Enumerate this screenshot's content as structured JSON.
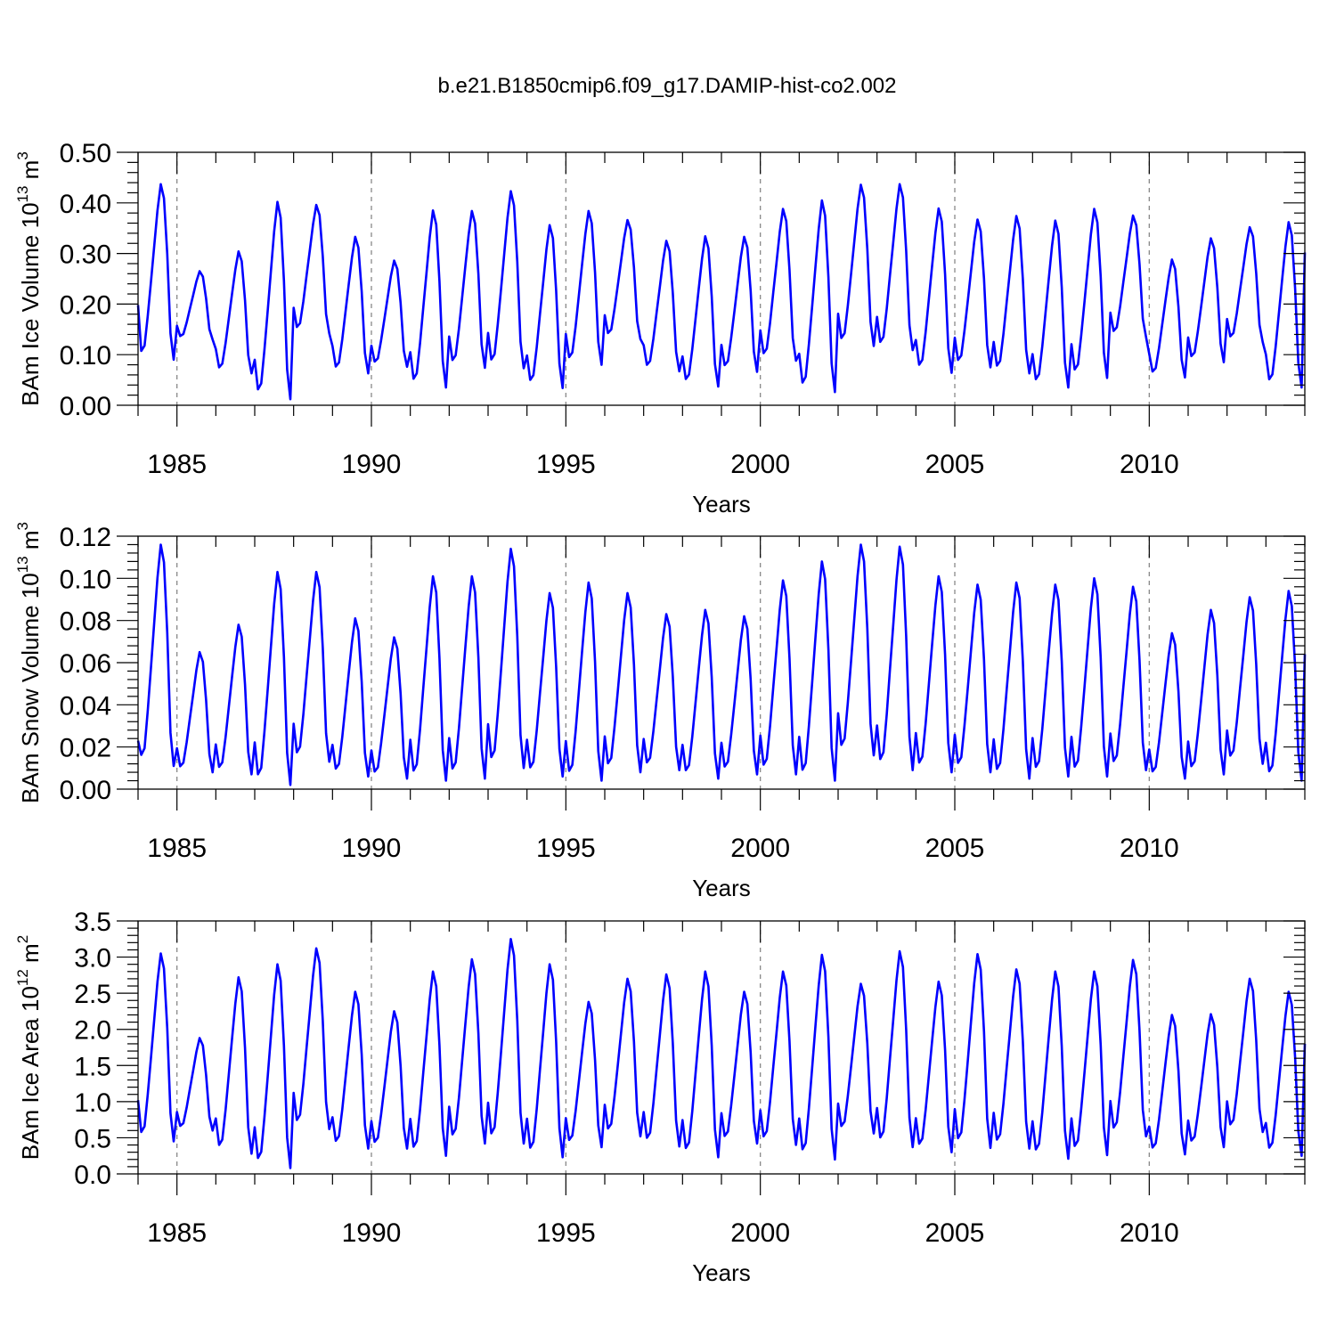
{
  "title": "b.e21.B1850cmip6.f09_g17.DAMIP-hist-co2.002",
  "colors": {
    "series": "#0000ff",
    "reference_line": "#888888"
  },
  "chart_data": [
    {
      "type": "line",
      "ylabel": "BAm Ice Volume 10",
      "ylabel_exp": "13",
      "ylabel_unit": " m",
      "ylabel_unit_exp": "3",
      "xlabel": "Years",
      "xlim": [
        1984.0,
        2014.0
      ],
      "ylim": [
        0.0,
        0.5
      ],
      "yticks": [
        "0.00",
        "0.10",
        "0.20",
        "0.30",
        "0.40",
        "0.50"
      ],
      "xticks": [
        "1985",
        "1990",
        "1995",
        "2000",
        "2005",
        "2010"
      ],
      "reference_lines_x": [
        1985,
        1990,
        1995,
        2000,
        2005,
        2010
      ],
      "grid": false,
      "annual": [
        {
          "year": 1984,
          "max": 0.437,
          "min": 0.09
        },
        {
          "year": 1985,
          "max": 0.265,
          "min": 0.13
        },
        {
          "year": 1986,
          "max": 0.304,
          "min": 0.063
        },
        {
          "year": 1987,
          "max": 0.402,
          "min": 0.012
        },
        {
          "year": 1988,
          "max": 0.396,
          "min": 0.142
        },
        {
          "year": 1989,
          "max": 0.333,
          "min": 0.063
        },
        {
          "year": 1990,
          "max": 0.286,
          "min": 0.076
        },
        {
          "year": 1991,
          "max": 0.385,
          "min": 0.035
        },
        {
          "year": 1992,
          "max": 0.384,
          "min": 0.074
        },
        {
          "year": 1993,
          "max": 0.423,
          "min": 0.073
        },
        {
          "year": 1994,
          "max": 0.356,
          "min": 0.034
        },
        {
          "year": 1995,
          "max": 0.384,
          "min": 0.08
        },
        {
          "year": 1996,
          "max": 0.366,
          "min": 0.131
        },
        {
          "year": 1997,
          "max": 0.325,
          "min": 0.067
        },
        {
          "year": 1998,
          "max": 0.334,
          "min": 0.037
        },
        {
          "year": 1999,
          "max": 0.333,
          "min": 0.066
        },
        {
          "year": 2000,
          "max": 0.388,
          "min": 0.088
        },
        {
          "year": 2001,
          "max": 0.405,
          "min": 0.026
        },
        {
          "year": 2002,
          "max": 0.436,
          "min": 0.117
        },
        {
          "year": 2003,
          "max": 0.437,
          "min": 0.109
        },
        {
          "year": 2004,
          "max": 0.389,
          "min": 0.064
        },
        {
          "year": 2005,
          "max": 0.367,
          "min": 0.075
        },
        {
          "year": 2006,
          "max": 0.374,
          "min": 0.063
        },
        {
          "year": 2007,
          "max": 0.365,
          "min": 0.035
        },
        {
          "year": 2008,
          "max": 0.388,
          "min": 0.054
        },
        {
          "year": 2009,
          "max": 0.375,
          "min": 0.135
        },
        {
          "year": 2010,
          "max": 0.288,
          "min": 0.055
        },
        {
          "year": 2011,
          "max": 0.33,
          "min": 0.085
        },
        {
          "year": 2012,
          "max": 0.352,
          "min": 0.125
        },
        {
          "year": 2013,
          "max": 0.362,
          "min": 0.035
        }
      ],
      "start_value": 0.198,
      "end_value": 0.302
    },
    {
      "type": "line",
      "ylabel": "BAm Snow Volume 10",
      "ylabel_exp": "13",
      "ylabel_unit": " m",
      "ylabel_unit_exp": "3",
      "xlabel": "Years",
      "xlim": [
        1984.0,
        2014.0
      ],
      "ylim": [
        0.0,
        0.12
      ],
      "yticks": [
        "0.00",
        "0.02",
        "0.04",
        "0.06",
        "0.08",
        "0.10",
        "0.12"
      ],
      "xticks": [
        "1985",
        "1990",
        "1995",
        "2000",
        "2005",
        "2010"
      ],
      "reference_lines_x": [
        1985,
        1990,
        1995,
        2000,
        2005,
        2010
      ],
      "grid": false,
      "annual": [
        {
          "year": 1984,
          "max": 0.116,
          "min": 0.011
        },
        {
          "year": 1985,
          "max": 0.065,
          "min": 0.008
        },
        {
          "year": 1986,
          "max": 0.078,
          "min": 0.007
        },
        {
          "year": 1987,
          "max": 0.103,
          "min": 0.002
        },
        {
          "year": 1988,
          "max": 0.103,
          "min": 0.013
        },
        {
          "year": 1989,
          "max": 0.081,
          "min": 0.006
        },
        {
          "year": 1990,
          "max": 0.072,
          "min": 0.005
        },
        {
          "year": 1991,
          "max": 0.101,
          "min": 0.004
        },
        {
          "year": 1992,
          "max": 0.101,
          "min": 0.005
        },
        {
          "year": 1993,
          "max": 0.114,
          "min": 0.01
        },
        {
          "year": 1994,
          "max": 0.093,
          "min": 0.006
        },
        {
          "year": 1995,
          "max": 0.098,
          "min": 0.004
        },
        {
          "year": 1996,
          "max": 0.093,
          "min": 0.008
        },
        {
          "year": 1997,
          "max": 0.083,
          "min": 0.009
        },
        {
          "year": 1998,
          "max": 0.085,
          "min": 0.005
        },
        {
          "year": 1999,
          "max": 0.082,
          "min": 0.007
        },
        {
          "year": 2000,
          "max": 0.099,
          "min": 0.007
        },
        {
          "year": 2001,
          "max": 0.108,
          "min": 0.004
        },
        {
          "year": 2002,
          "max": 0.116,
          "min": 0.016
        },
        {
          "year": 2003,
          "max": 0.115,
          "min": 0.009
        },
        {
          "year": 2004,
          "max": 0.101,
          "min": 0.008
        },
        {
          "year": 2005,
          "max": 0.097,
          "min": 0.008
        },
        {
          "year": 2006,
          "max": 0.098,
          "min": 0.005
        },
        {
          "year": 2007,
          "max": 0.097,
          "min": 0.006
        },
        {
          "year": 2008,
          "max": 0.1,
          "min": 0.006
        },
        {
          "year": 2009,
          "max": 0.096,
          "min": 0.009
        },
        {
          "year": 2010,
          "max": 0.074,
          "min": 0.005
        },
        {
          "year": 2011,
          "max": 0.085,
          "min": 0.007
        },
        {
          "year": 2012,
          "max": 0.091,
          "min": 0.012
        },
        {
          "year": 2013,
          "max": 0.094,
          "min": 0.004
        }
      ],
      "start_value": 0.023,
      "end_value": 0.064
    },
    {
      "type": "line",
      "ylabel": "BAm Ice Area 10",
      "ylabel_exp": "12",
      "ylabel_unit": " m",
      "ylabel_unit_exp": "2",
      "xlabel": "Years",
      "xlim": [
        1984.0,
        2014.0
      ],
      "ylim": [
        0.0,
        3.5
      ],
      "yticks": [
        "0.0",
        "0.5",
        "1.0",
        "1.5",
        "2.0",
        "2.5",
        "3.0",
        "3.5"
      ],
      "xticks": [
        "1985",
        "1990",
        "1995",
        "2000",
        "2005",
        "2010"
      ],
      "reference_lines_x": [
        1985,
        1990,
        1995,
        2000,
        2005,
        2010
      ],
      "grid": false,
      "annual": [
        {
          "year": 1984,
          "max": 3.05,
          "min": 0.45
        },
        {
          "year": 1985,
          "max": 1.88,
          "min": 0.6
        },
        {
          "year": 1986,
          "max": 2.72,
          "min": 0.28
        },
        {
          "year": 1987,
          "max": 2.9,
          "min": 0.08
        },
        {
          "year": 1988,
          "max": 3.12,
          "min": 0.62
        },
        {
          "year": 1989,
          "max": 2.52,
          "min": 0.35
        },
        {
          "year": 1990,
          "max": 2.25,
          "min": 0.35
        },
        {
          "year": 1991,
          "max": 2.8,
          "min": 0.25
        },
        {
          "year": 1992,
          "max": 2.97,
          "min": 0.42
        },
        {
          "year": 1993,
          "max": 3.25,
          "min": 0.42
        },
        {
          "year": 1994,
          "max": 2.9,
          "min": 0.23
        },
        {
          "year": 1995,
          "max": 2.38,
          "min": 0.37
        },
        {
          "year": 1996,
          "max": 2.7,
          "min": 0.52
        },
        {
          "year": 1997,
          "max": 2.76,
          "min": 0.38
        },
        {
          "year": 1998,
          "max": 2.8,
          "min": 0.23
        },
        {
          "year": 1999,
          "max": 2.52,
          "min": 0.42
        },
        {
          "year": 2000,
          "max": 2.8,
          "min": 0.4
        },
        {
          "year": 2001,
          "max": 3.03,
          "min": 0.2
        },
        {
          "year": 2002,
          "max": 2.63,
          "min": 0.56
        },
        {
          "year": 2003,
          "max": 3.08,
          "min": 0.37
        },
        {
          "year": 2004,
          "max": 2.66,
          "min": 0.3
        },
        {
          "year": 2005,
          "max": 3.04,
          "min": 0.36
        },
        {
          "year": 2006,
          "max": 2.83,
          "min": 0.35
        },
        {
          "year": 2007,
          "max": 2.8,
          "min": 0.21
        },
        {
          "year": 2008,
          "max": 2.8,
          "min": 0.26
        },
        {
          "year": 2009,
          "max": 2.96,
          "min": 0.52
        },
        {
          "year": 2010,
          "max": 2.2,
          "min": 0.27
        },
        {
          "year": 2011,
          "max": 2.21,
          "min": 0.37
        },
        {
          "year": 2012,
          "max": 2.7,
          "min": 0.58
        },
        {
          "year": 2013,
          "max": 2.52,
          "min": 0.25
        }
      ],
      "start_value": 1.02,
      "end_value": 1.8
    }
  ]
}
